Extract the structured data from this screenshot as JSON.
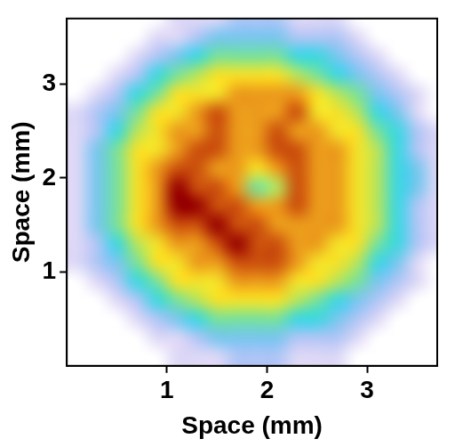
{
  "chart_data": {
    "type": "heatmap",
    "xlabel": "Space (mm)",
    "ylabel": "Space (mm)",
    "x": [
      0.1,
      0.3,
      0.5,
      0.7,
      0.9,
      1.1,
      1.3,
      1.5,
      1.7,
      1.9,
      2.1,
      2.3,
      2.5,
      2.7,
      2.9,
      3.1,
      3.3,
      3.5,
      3.7
    ],
    "y": [
      0.1,
      0.3,
      0.5,
      0.7,
      0.9,
      1.1,
      1.3,
      1.5,
      1.7,
      1.9,
      2.1,
      2.3,
      2.5,
      2.7,
      2.9,
      3.1,
      3.3,
      3.5,
      3.7
    ],
    "cells": [
      [
        0,
        0,
        0,
        0,
        0,
        1,
        1,
        1,
        2,
        2,
        2,
        1,
        1,
        1,
        0,
        0,
        0,
        0,
        0
      ],
      [
        0,
        0,
        0,
        0,
        1,
        1,
        2,
        3,
        3,
        3,
        3,
        2,
        2,
        2,
        1,
        0,
        0,
        0,
        0
      ],
      [
        0,
        0,
        0,
        1,
        2,
        3,
        4,
        5,
        5,
        5,
        5,
        4,
        4,
        3,
        2,
        1,
        0,
        0,
        0
      ],
      [
        0,
        0,
        1,
        2,
        4,
        5,
        6,
        7,
        7,
        7,
        7,
        6,
        5,
        4,
        3,
        2,
        1,
        0,
        0
      ],
      [
        0,
        1,
        2,
        4,
        5,
        7,
        7,
        7,
        8,
        8,
        8,
        7,
        7,
        6,
        5,
        3,
        2,
        1,
        0
      ],
      [
        1,
        2,
        3,
        5,
        7,
        7,
        8,
        8,
        9,
        9,
        9,
        8,
        7,
        7,
        6,
        4,
        3,
        1,
        0
      ],
      [
        1,
        2,
        4,
        6,
        7,
        8,
        8,
        9,
        10,
        9,
        9,
        8,
        8,
        7,
        7,
        5,
        4,
        2,
        1
      ],
      [
        1,
        3,
        5,
        7,
        8,
        9,
        9,
        10,
        9,
        9,
        8,
        8,
        8,
        8,
        7,
        6,
        4,
        2,
        1
      ],
      [
        1,
        3,
        5,
        7,
        8,
        10,
        10,
        9,
        9,
        8,
        8,
        9,
        8,
        8,
        7,
        6,
        4,
        2,
        1
      ],
      [
        1,
        3,
        5,
        7,
        8,
        10,
        9,
        9,
        8,
        5,
        6,
        9,
        8,
        8,
        7,
        6,
        4,
        3,
        1
      ],
      [
        1,
        3,
        5,
        7,
        8,
        9,
        9,
        8,
        8,
        7,
        8,
        9,
        8,
        8,
        7,
        6,
        4,
        3,
        1
      ],
      [
        1,
        3,
        5,
        7,
        7,
        8,
        9,
        9,
        8,
        8,
        9,
        9,
        8,
        8,
        7,
        6,
        4,
        2,
        1
      ],
      [
        1,
        2,
        4,
        6,
        7,
        8,
        8,
        9,
        8,
        8,
        9,
        8,
        8,
        7,
        7,
        5,
        4,
        2,
        1
      ],
      [
        1,
        2,
        3,
        5,
        7,
        7,
        8,
        9,
        8,
        8,
        8,
        9,
        7,
        7,
        6,
        4,
        3,
        1,
        0
      ],
      [
        0,
        1,
        2,
        4,
        5,
        7,
        7,
        7,
        8,
        8,
        8,
        8,
        7,
        6,
        5,
        3,
        2,
        1,
        0
      ],
      [
        0,
        0,
        1,
        2,
        4,
        5,
        6,
        7,
        7,
        7,
        7,
        6,
        5,
        4,
        3,
        2,
        1,
        0,
        0
      ],
      [
        0,
        0,
        0,
        1,
        2,
        3,
        4,
        5,
        5,
        5,
        5,
        4,
        4,
        3,
        2,
        1,
        0,
        0,
        0
      ],
      [
        0,
        0,
        0,
        0,
        1,
        1,
        2,
        3,
        3,
        3,
        3,
        2,
        2,
        2,
        1,
        0,
        0,
        0,
        0
      ],
      [
        0,
        0,
        0,
        0,
        0,
        1,
        1,
        1,
        2,
        2,
        2,
        1,
        1,
        1,
        0,
        0,
        0,
        0,
        0
      ]
    ],
    "xlim": [
      0,
      3.7
    ],
    "ylim": [
      0,
      3.7
    ],
    "xticks": [
      1,
      2,
      3
    ],
    "yticks": [
      1,
      2,
      3
    ],
    "grid": false
  }
}
